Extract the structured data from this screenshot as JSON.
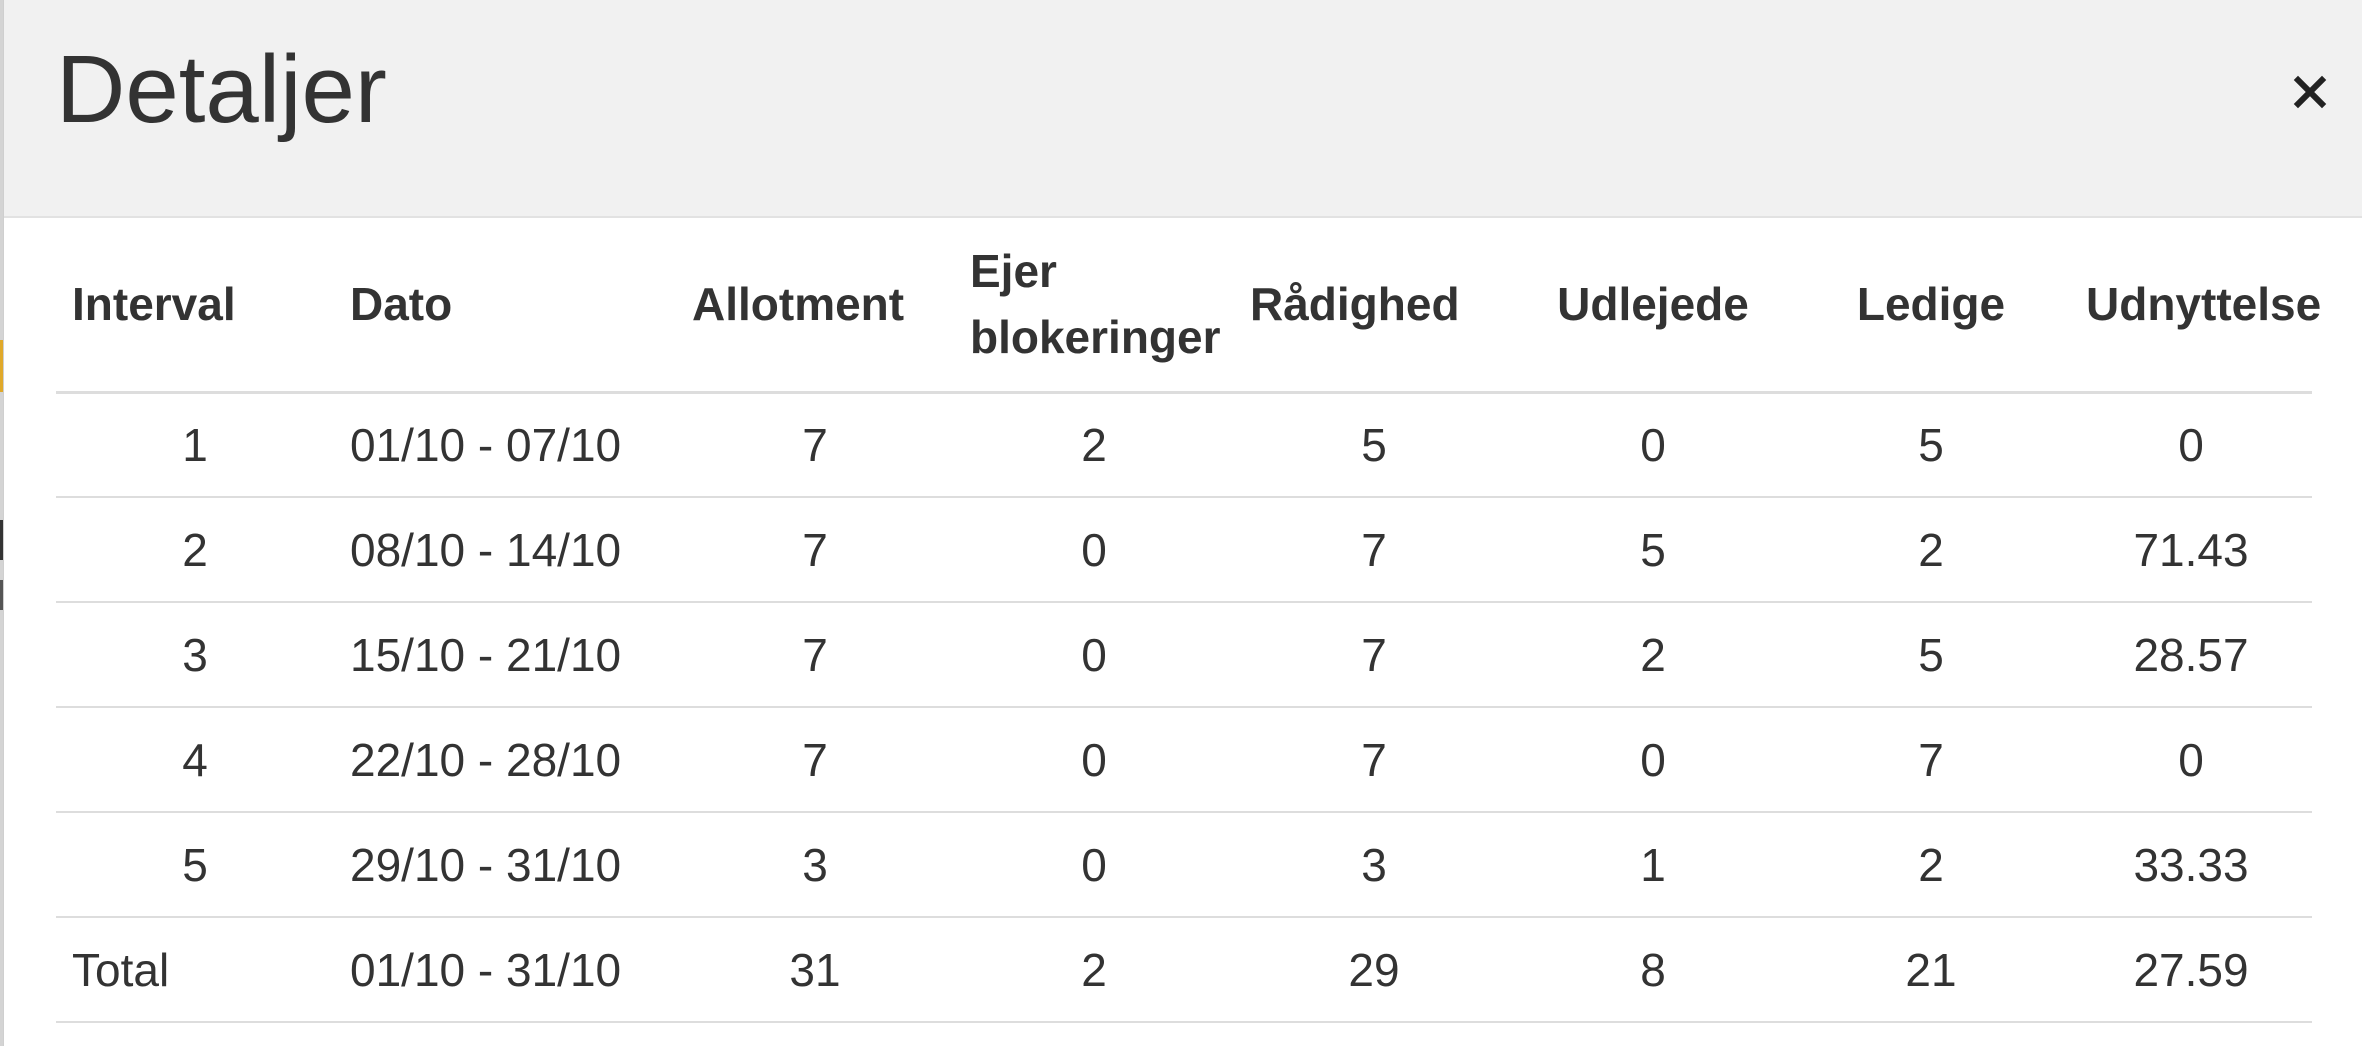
{
  "modal": {
    "title": "Detaljer",
    "close_label": "×"
  },
  "table": {
    "headers": {
      "interval": "Interval",
      "dato": "Dato",
      "allotment": "Allotment",
      "ejer_blokeringer_line1": "Ejer",
      "ejer_blokeringer_line2": "blokeringer",
      "radighed": "Rådighed",
      "udlejede": "Udlejede",
      "ledige": "Ledige",
      "udnyttelse": "Udnyttelse"
    },
    "rows": [
      {
        "interval": "1",
        "dato": "01/10 - 07/10",
        "allotment": "7",
        "ejer_blokeringer": "2",
        "radighed": "5",
        "udlejede": "0",
        "ledige": "5",
        "udnyttelse": "0"
      },
      {
        "interval": "2",
        "dato": "08/10 - 14/10",
        "allotment": "7",
        "ejer_blokeringer": "0",
        "radighed": "7",
        "udlejede": "5",
        "ledige": "2",
        "udnyttelse": "71.43"
      },
      {
        "interval": "3",
        "dato": "15/10 - 21/10",
        "allotment": "7",
        "ejer_blokeringer": "0",
        "radighed": "7",
        "udlejede": "2",
        "ledige": "5",
        "udnyttelse": "28.57"
      },
      {
        "interval": "4",
        "dato": "22/10 - 28/10",
        "allotment": "7",
        "ejer_blokeringer": "0",
        "radighed": "7",
        "udlejede": "0",
        "ledige": "7",
        "udnyttelse": "0"
      },
      {
        "interval": "5",
        "dato": "29/10 - 31/10",
        "allotment": "3",
        "ejer_blokeringer": "0",
        "radighed": "3",
        "udlejede": "1",
        "ledige": "2",
        "udnyttelse": "33.33"
      }
    ],
    "total": {
      "interval": "Total",
      "dato": "01/10 - 31/10",
      "allotment": "31",
      "ejer_blokeringer": "2",
      "radighed": "29",
      "udlejede": "8",
      "ledige": "21",
      "udnyttelse": "27.59"
    }
  },
  "colors": {
    "header_bg": "#f1f1f1",
    "text": "#333333",
    "row_divider": "#dddddd",
    "background_accent": "#e0a92a"
  }
}
